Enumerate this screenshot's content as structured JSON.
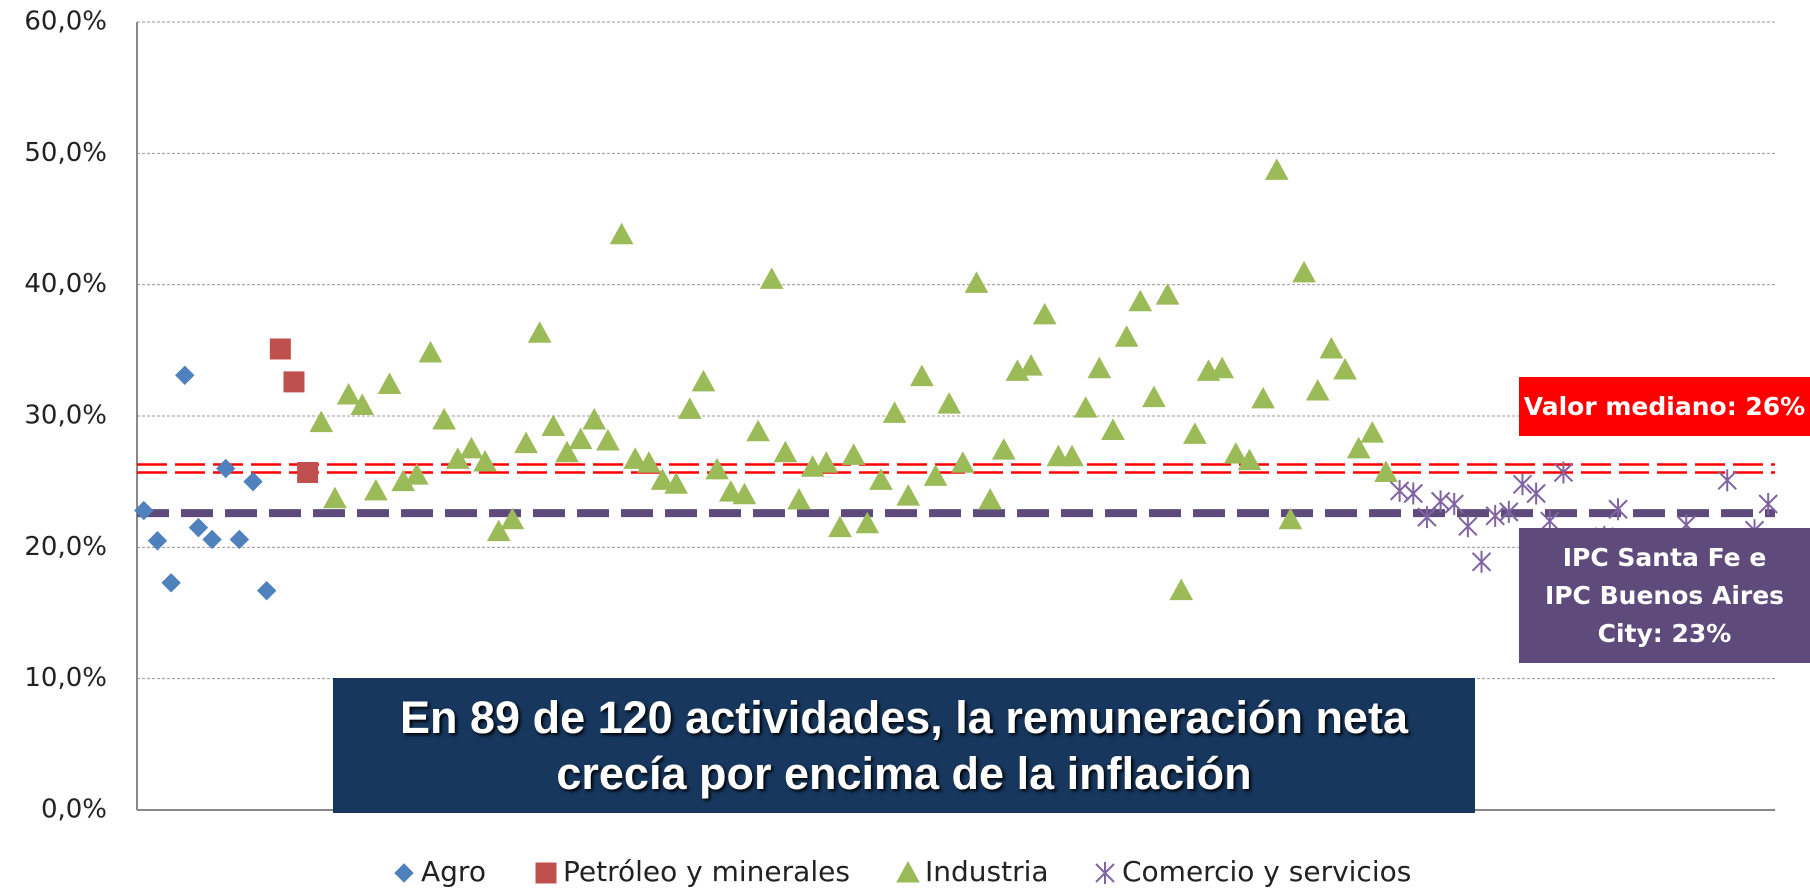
{
  "chart_data": {
    "type": "scatter",
    "xlim": [
      0.5,
      120.5
    ],
    "ylim": [
      0,
      60
    ],
    "yticks": [
      {
        "value": 0,
        "label": "0,0%"
      },
      {
        "value": 10,
        "label": "10,0%"
      },
      {
        "value": 20,
        "label": "20,0%"
      },
      {
        "value": 30,
        "label": "30,0%"
      },
      {
        "value": 40,
        "label": "40,0%"
      },
      {
        "value": 50,
        "label": "50,0%"
      },
      {
        "value": 60,
        "label": "60,0%"
      }
    ],
    "grid": true,
    "legend": "bottom",
    "series": [
      {
        "name": "Agro",
        "color": "#4f81bd",
        "marker": "diamond",
        "x": [
          1,
          2,
          3,
          4,
          5,
          6,
          7,
          8,
          9,
          10
        ],
        "values": [
          22.8,
          20.5,
          17.3,
          33.1,
          21.5,
          20.6,
          26.0,
          20.6,
          25.0,
          16.7
        ]
      },
      {
        "name": "Petróleo y minerales",
        "color": "#c0504d",
        "marker": "square",
        "x": [
          11,
          12,
          13
        ],
        "values": [
          35.1,
          32.6,
          25.7
        ]
      },
      {
        "name": "Industria",
        "color": "#9bbb59",
        "marker": "triangle",
        "x": [
          14,
          15,
          16,
          17,
          18,
          19,
          20,
          21,
          22,
          23,
          24,
          25,
          26,
          27,
          28,
          29,
          30,
          31,
          32,
          33,
          34,
          35,
          36,
          37,
          38,
          39,
          40,
          41,
          42,
          43,
          44,
          45,
          46,
          47,
          48,
          49,
          50,
          51,
          52,
          53,
          54,
          55,
          56,
          57,
          58,
          59,
          60,
          61,
          62,
          63,
          64,
          65,
          66,
          67,
          68,
          69,
          70,
          71,
          72,
          73,
          74,
          75,
          76,
          77,
          78,
          79,
          80,
          81,
          82,
          83,
          84,
          85,
          86,
          87,
          88,
          89,
          90,
          91,
          92
        ],
        "values": [
          29.5,
          23.7,
          31.6,
          30.8,
          24.3,
          32.4,
          25.0,
          25.5,
          34.8,
          29.7,
          26.7,
          27.5,
          26.5,
          21.2,
          22.1,
          27.9,
          36.3,
          29.2,
          27.2,
          28.2,
          29.7,
          28.1,
          43.8,
          26.7,
          26.4,
          25.1,
          24.8,
          30.5,
          32.6,
          25.9,
          24.2,
          24.0,
          28.8,
          40.4,
          27.2,
          23.6,
          26.1,
          26.4,
          21.5,
          27.0,
          21.8,
          25.1,
          30.2,
          23.9,
          33.0,
          25.4,
          30.9,
          26.4,
          40.1,
          23.6,
          27.4,
          33.4,
          33.8,
          37.7,
          26.9,
          26.9,
          30.6,
          33.6,
          28.9,
          36.0,
          38.7,
          31.4,
          39.2,
          16.7,
          28.6,
          33.4,
          33.6,
          27.1,
          26.6,
          31.3,
          48.7,
          22.1,
          40.9,
          31.9,
          35.1,
          33.5,
          27.5,
          28.7,
          25.7
        ]
      },
      {
        "name": "Comercio y servicios",
        "color": "#8064a2",
        "marker": "star",
        "x": [
          93,
          94,
          95,
          96,
          97,
          98,
          99,
          100,
          101,
          102,
          103,
          104,
          105,
          106,
          107,
          108,
          109,
          110,
          111,
          112,
          113,
          114,
          115,
          116,
          117,
          118,
          119,
          120
        ],
        "values": [
          24.3,
          24.1,
          22.3,
          23.5,
          23.3,
          21.6,
          18.9,
          22.4,
          22.7,
          24.8,
          24.1,
          22.0,
          25.7,
          20.5,
          19.5,
          20.8,
          22.9,
          19.8,
          20.2,
          19.0,
          20.5,
          21.7,
          19.6,
          20.3,
          25.1,
          20.0,
          21.3,
          23.3
        ]
      }
    ],
    "reference_lines": [
      {
        "value": 26,
        "label": "Valor mediano: 26%",
        "color": "#ff0000",
        "style": "double"
      },
      {
        "value": 22.6,
        "label": "IPC Santa Fe e IPC Buenos  Aires City: 23%",
        "color": "#5f4b7b",
        "style": "dashed"
      }
    ],
    "annotation": "En 89 de 120 actividades, la remuneración neta crecía por encima de la inflación"
  }
}
